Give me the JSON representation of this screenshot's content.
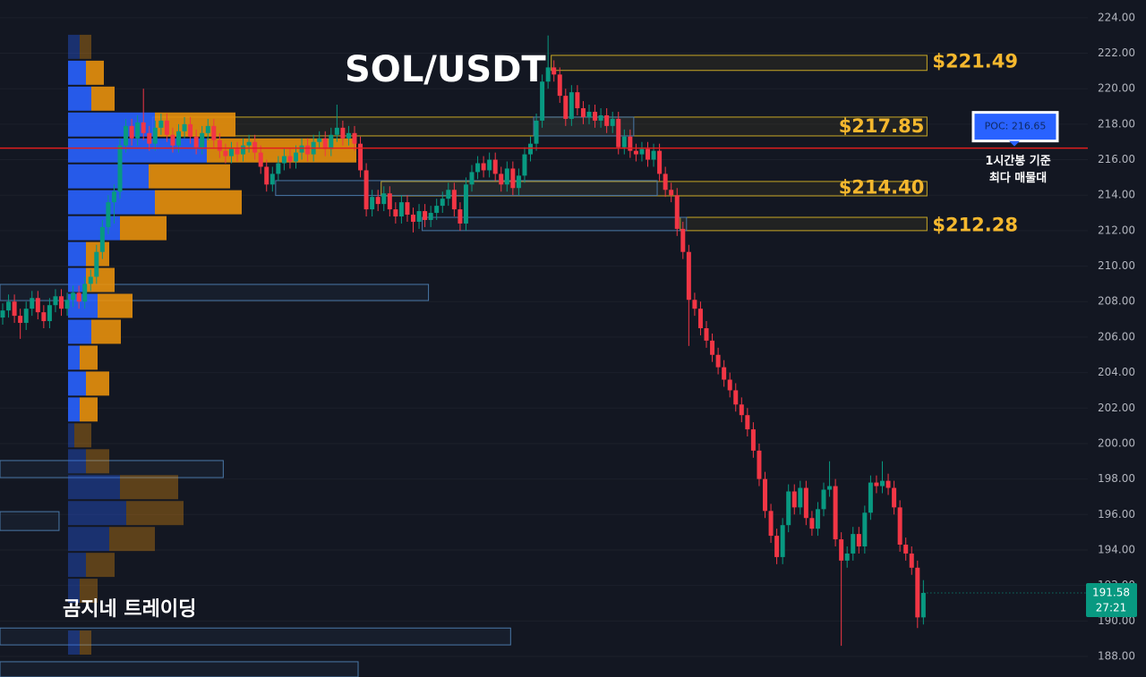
{
  "chart_data": {
    "type": "candlestick",
    "title": "SOL/USDT",
    "watermark": "곰지네 트레이딩",
    "open": [
      207.1,
      207.5,
      208.0,
      207.2,
      206.8,
      207.6,
      208.2,
      207.4,
      206.9,
      207.8,
      208.3,
      207.6,
      208.1,
      208.5,
      208.0,
      209.0,
      209.4,
      210.8,
      212.2,
      213.6,
      214.2,
      216.8,
      217.9,
      217.2,
      218.1,
      217.5,
      216.9,
      217.8,
      218.2,
      217.4,
      216.8,
      217.6,
      218.0,
      217.3,
      216.7,
      217.5,
      217.9,
      217.1,
      216.5,
      216.2,
      216.6,
      216.3,
      216.8,
      217.0,
      216.4,
      215.6,
      214.6,
      215.2,
      215.8,
      216.2,
      215.9,
      216.4,
      216.8,
      216.3,
      217.0,
      217.2,
      216.6,
      217.4,
      217.8,
      217.2,
      217.5,
      216.9,
      215.4,
      213.2,
      213.9,
      213.5,
      214.1,
      213.2,
      212.8,
      213.6,
      212.9,
      212.5,
      213.1,
      212.6,
      213.0,
      213.4,
      213.8,
      214.3,
      213.2,
      212.4,
      214.6,
      215.3,
      215.8,
      215.4,
      216.0,
      215.2,
      214.6,
      215.5,
      214.4,
      215.1,
      216.3,
      216.9,
      218.2,
      220.4,
      221.2,
      220.8,
      219.6,
      218.3,
      219.8,
      218.9,
      218.4,
      218.7,
      218.2,
      218.5,
      217.9,
      218.3,
      216.7,
      217.3,
      216.5,
      216.3,
      216.6,
      216.0,
      216.5,
      215.2,
      214.3,
      214.0,
      212.1,
      210.8,
      208.1,
      207.6,
      206.5,
      205.8,
      205.0,
      204.3,
      203.6,
      203.0,
      202.2,
      201.6,
      200.8,
      199.6,
      198.0,
      196.2,
      194.8,
      193.6,
      195.4,
      197.3,
      196.4,
      197.5,
      195.8,
      195.2,
      196.3,
      197.4,
      197.6,
      194.6,
      193.4,
      193.8,
      194.9,
      194.2,
      196.1,
      197.8,
      197.6,
      197.9,
      197.5,
      196.4,
      194.3,
      193.8,
      193.0,
      190.2
    ],
    "high": [
      207.9,
      208.4,
      208.4,
      207.6,
      208.0,
      208.6,
      208.6,
      207.8,
      208.2,
      208.7,
      208.7,
      208.5,
      208.9,
      208.9,
      209.4,
      209.8,
      211.2,
      212.6,
      214.0,
      214.6,
      217.2,
      218.3,
      218.3,
      218.5,
      220.0,
      217.9,
      218.2,
      218.6,
      218.6,
      217.8,
      218.0,
      218.4,
      218.4,
      217.7,
      217.9,
      218.3,
      218.3,
      217.5,
      216.9,
      217.0,
      217.0,
      217.2,
      217.4,
      217.4,
      216.8,
      216.0,
      215.6,
      216.2,
      216.6,
      216.6,
      216.8,
      217.2,
      217.2,
      217.4,
      217.6,
      217.6,
      217.8,
      219.1,
      218.2,
      217.9,
      217.9,
      217.3,
      215.8,
      214.3,
      214.3,
      214.5,
      214.5,
      213.6,
      214.0,
      214.0,
      213.3,
      213.5,
      213.5,
      213.4,
      213.8,
      214.2,
      214.7,
      214.7,
      213.6,
      215.0,
      215.7,
      216.2,
      216.2,
      216.4,
      216.4,
      215.6,
      215.9,
      215.9,
      215.5,
      216.7,
      217.3,
      218.6,
      220.8,
      223.0,
      221.6,
      221.2,
      220.0,
      220.2,
      220.2,
      219.3,
      219.1,
      219.1,
      218.9,
      218.9,
      218.7,
      218.7,
      217.7,
      217.7,
      216.9,
      217.0,
      217.0,
      216.9,
      216.9,
      215.6,
      214.7,
      214.4,
      212.5,
      211.2,
      208.5,
      208.0,
      206.9,
      206.2,
      205.4,
      204.7,
      204.0,
      203.4,
      202.6,
      202.0,
      201.2,
      200.0,
      198.4,
      196.6,
      195.2,
      195.8,
      197.7,
      197.7,
      197.9,
      197.9,
      196.2,
      196.7,
      197.8,
      199.0,
      198.0,
      195.0,
      194.2,
      195.3,
      195.3,
      196.5,
      198.2,
      198.2,
      199.0,
      198.3,
      197.9,
      196.8,
      194.7,
      194.2,
      193.4,
      192.3
    ],
    "low": [
      206.7,
      207.1,
      206.8,
      205.9,
      206.4,
      207.2,
      207.0,
      206.5,
      206.5,
      207.4,
      207.2,
      207.2,
      207.7,
      207.6,
      207.6,
      208.6,
      209.0,
      210.4,
      211.8,
      212.4,
      213.8,
      216.4,
      216.8,
      216.8,
      217.1,
      216.5,
      216.5,
      217.4,
      217.0,
      216.4,
      216.4,
      217.2,
      216.9,
      216.3,
      216.3,
      217.1,
      216.7,
      216.1,
      215.8,
      215.8,
      215.9,
      215.9,
      216.4,
      216.0,
      215.2,
      214.2,
      214.2,
      214.8,
      215.4,
      215.5,
      215.5,
      216.0,
      215.9,
      215.9,
      216.6,
      216.2,
      216.2,
      217.0,
      216.8,
      216.8,
      216.5,
      215.0,
      212.8,
      212.8,
      213.1,
      213.1,
      212.8,
      212.4,
      212.4,
      212.5,
      211.9,
      212.1,
      212.2,
      212.2,
      212.6,
      213.0,
      213.4,
      212.8,
      212.0,
      212.0,
      214.2,
      214.9,
      215.0,
      215.0,
      214.8,
      214.2,
      214.2,
      214.0,
      214.0,
      214.7,
      215.9,
      216.5,
      217.8,
      220.0,
      220.4,
      219.2,
      217.9,
      217.9,
      218.5,
      218.0,
      218.0,
      217.8,
      217.8,
      217.5,
      217.5,
      216.3,
      216.3,
      216.1,
      215.9,
      215.9,
      215.6,
      215.6,
      214.8,
      213.9,
      213.6,
      211.7,
      210.4,
      205.5,
      207.2,
      206.1,
      205.4,
      204.6,
      203.9,
      203.2,
      202.6,
      201.8,
      201.2,
      200.4,
      199.2,
      197.6,
      195.8,
      194.4,
      193.2,
      193.2,
      195.0,
      196.0,
      196.0,
      195.4,
      194.8,
      194.8,
      195.9,
      197.0,
      194.2,
      188.6,
      193.0,
      193.4,
      193.8,
      193.8,
      195.7,
      197.2,
      197.2,
      197.1,
      196.0,
      193.9,
      193.4,
      192.6,
      189.6,
      189.8
    ],
    "close": [
      207.5,
      208.0,
      207.2,
      206.8,
      207.6,
      208.2,
      207.4,
      206.9,
      207.8,
      208.3,
      207.6,
      208.1,
      208.5,
      208.0,
      209.0,
      209.4,
      210.8,
      212.2,
      213.6,
      214.2,
      216.8,
      217.9,
      217.2,
      218.1,
      217.5,
      216.9,
      217.8,
      218.2,
      217.4,
      216.8,
      217.6,
      218.0,
      217.3,
      216.7,
      217.5,
      217.9,
      217.1,
      216.5,
      216.2,
      216.6,
      216.3,
      216.8,
      217.0,
      216.4,
      215.6,
      214.6,
      215.2,
      215.8,
      216.2,
      215.9,
      216.4,
      216.8,
      216.3,
      217.0,
      217.2,
      216.6,
      217.4,
      217.8,
      217.2,
      217.5,
      216.9,
      215.4,
      213.2,
      213.9,
      213.5,
      214.1,
      213.2,
      212.8,
      213.6,
      212.9,
      212.5,
      213.1,
      212.6,
      213.0,
      213.4,
      213.8,
      214.3,
      213.2,
      212.4,
      214.6,
      215.3,
      215.8,
      215.4,
      216.0,
      215.2,
      214.6,
      215.5,
      214.4,
      215.1,
      216.3,
      216.9,
      218.2,
      220.4,
      221.2,
      220.8,
      219.6,
      218.3,
      219.8,
      218.9,
      218.4,
      218.7,
      218.2,
      218.5,
      217.9,
      218.3,
      216.7,
      217.3,
      216.5,
      216.3,
      216.6,
      216.0,
      216.5,
      215.2,
      214.3,
      214.0,
      212.1,
      210.8,
      208.1,
      207.6,
      206.5,
      205.8,
      205.0,
      204.3,
      203.6,
      203.0,
      202.2,
      201.6,
      200.8,
      199.6,
      198.0,
      196.2,
      194.8,
      193.6,
      195.4,
      197.3,
      196.4,
      197.5,
      195.8,
      195.2,
      196.3,
      197.4,
      197.6,
      194.6,
      193.4,
      193.8,
      194.9,
      194.2,
      196.1,
      197.8,
      197.6,
      197.9,
      197.5,
      196.4,
      194.3,
      193.8,
      193.0,
      190.2,
      191.58
    ],
    "up_color": "#089981",
    "down_color": "#f23645",
    "countdown": "27:21",
    "ylim": [
      186.84,
      225.0
    ],
    "yticks": [
      {
        "value": 188,
        "label": "188.00"
      },
      {
        "value": 190,
        "label": "190.00"
      },
      {
        "value": 192,
        "label": "192.00"
      },
      {
        "value": 194,
        "label": "194.00"
      },
      {
        "value": 196,
        "label": "196.00"
      },
      {
        "value": 198,
        "label": "198.00"
      },
      {
        "value": 200,
        "label": "200.00"
      },
      {
        "value": 202,
        "label": "202.00"
      },
      {
        "value": 204,
        "label": "204.00"
      },
      {
        "value": 206,
        "label": "206.00"
      },
      {
        "value": 208,
        "label": "208.00"
      },
      {
        "value": 210,
        "label": "210.00"
      },
      {
        "value": 212,
        "label": "212.00"
      },
      {
        "value": 214,
        "label": "214.00"
      },
      {
        "value": 216,
        "label": "216.00"
      },
      {
        "value": 218,
        "label": "218.00"
      },
      {
        "value": 220,
        "label": "220.00"
      },
      {
        "value": 222,
        "label": "222.00"
      },
      {
        "value": 224,
        "label": "224.00"
      }
    ],
    "grid": true,
    "poc": {
      "value": 216.65,
      "label": "POC: 216.65",
      "note": [
        "1시간봉 기준",
        "최다 매물대"
      ],
      "color": "#e01e1e"
    },
    "volume_profile": {
      "top": 223.09,
      "row_size": 1.46,
      "buy_color": "#2962ff",
      "sell_color": "#e8900c",
      "buy": [
        13,
        20,
        26,
        97,
        155,
        90,
        97,
        58,
        20,
        20,
        33,
        26,
        13,
        20,
        13,
        7,
        20,
        58,
        65,
        46,
        20,
        13,
        0,
        13
      ],
      "sell": [
        13,
        20,
        26,
        90,
        167,
        91,
        97,
        52,
        26,
        32,
        39,
        33,
        20,
        26,
        20,
        19,
        26,
        65,
        64,
        51,
        32,
        20,
        0,
        13
      ],
      "value_area": [
        201.19,
        221.63
      ]
    },
    "zones": [
      {
        "top": 221.88,
        "bottom": 221.03,
        "from": 94,
        "to": 157,
        "color": "#c9a825",
        "level": 221.49,
        "label": "$221.49",
        "label_position": "outside"
      },
      {
        "top": 218.4,
        "bottom": 217.34,
        "from": 26,
        "to": 157,
        "color": "#c9a825",
        "level": 217.85,
        "label": "$217.85",
        "label_position": "inside"
      },
      {
        "top": 214.77,
        "bottom": 213.96,
        "from": 65,
        "to": 157,
        "color": "#c9a825",
        "level": 214.4,
        "label": "$214.40",
        "label_position": "inside"
      },
      {
        "top": 212.75,
        "bottom": 212.0,
        "from": 116,
        "to": 157,
        "color": "#c9a825",
        "level": 212.28,
        "label": "$212.28",
        "label_position": "outside"
      },
      {
        "top": 218.4,
        "bottom": 217.34,
        "from": 91,
        "to": 107,
        "color": "#4a78a8"
      },
      {
        "top": 214.82,
        "bottom": 213.98,
        "from": 47,
        "to": 111,
        "color": "#4a78a8"
      },
      {
        "top": 212.75,
        "bottom": 212.0,
        "from": 72,
        "to": 116,
        "color": "#4a78a8"
      },
      {
        "top": 208.97,
        "bottom": 208.06,
        "from": 0,
        "to": 72,
        "color": "#4a78a8"
      },
      {
        "top": 199.04,
        "bottom": 198.08,
        "from": 0,
        "to": 37,
        "color": "#4a78a8"
      },
      {
        "top": 196.16,
        "bottom": 195.1,
        "from": 0,
        "to": 9,
        "color": "#4a78a8"
      },
      {
        "top": 189.6,
        "bottom": 188.65,
        "from": 0,
        "to": 86,
        "color": "#4a78a8"
      },
      {
        "top": 187.7,
        "bottom": 186.84,
        "from": 0,
        "to": 60,
        "color": "#4a78a8"
      }
    ]
  }
}
